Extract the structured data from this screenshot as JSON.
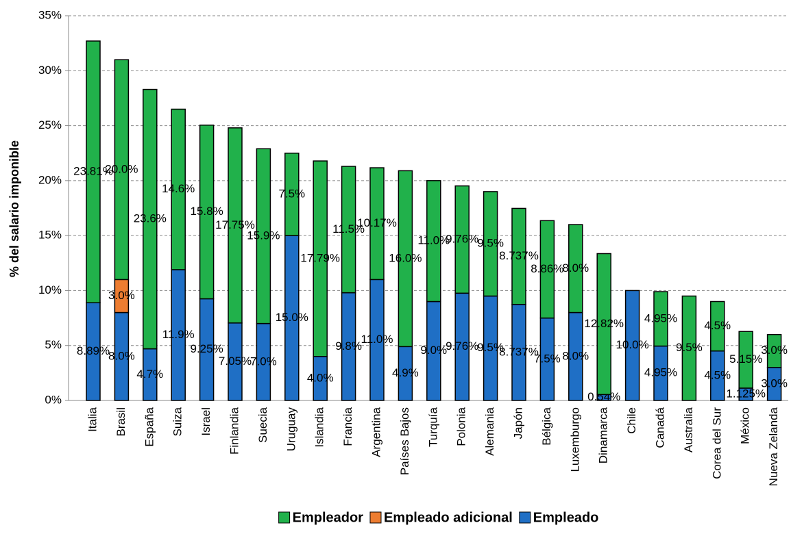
{
  "chart_data": {
    "type": "stacked-bar",
    "y_label": "% del salario imponible",
    "categories": [
      "Italia",
      "Brasil",
      "España",
      "Suiza",
      "Israel",
      "Finlandia",
      "Suecia",
      "Uruguay",
      "Islandia",
      "Francia",
      "Argentina",
      "Países Bajos",
      "Turquía",
      "Polonia",
      "Alemania",
      "Japón",
      "Bélgica",
      "Luxemburgo",
      "Dinamarca",
      "Chile",
      "Canadá",
      "Australia",
      "Corea del Sur",
      "México",
      "Nueva Zelanda"
    ],
    "series": [
      {
        "name": "Empleador",
        "color": "#21b14b",
        "values": [
          23.81,
          20.0,
          23.6,
          14.6,
          15.8,
          17.75,
          15.9,
          7.5,
          17.79,
          11.5,
          10.17,
          16.0,
          11.0,
          9.76,
          9.5,
          8.737,
          8.86,
          8.0,
          12.82,
          null,
          4.95,
          9.5,
          4.5,
          5.15,
          3.0
        ],
        "value_labels": [
          "23.81%",
          "20.0%",
          "23.6%",
          "14.6%",
          "15.8%",
          "17.75%",
          "15.9%",
          "7.5%",
          "17.79%",
          "11.5%",
          "10.17%",
          "16.0%",
          "11.0%",
          "9.76%",
          "9.5%",
          "8.737%",
          "8.86%",
          "8.0%",
          "12.82%",
          null,
          "4.95%",
          "9.5%",
          "4.5%",
          "5.15%",
          "3.0%"
        ]
      },
      {
        "name": "Empleado adicional",
        "color": "#ed7d31",
        "values": [
          null,
          3.0,
          null,
          null,
          null,
          null,
          null,
          null,
          null,
          null,
          null,
          null,
          null,
          null,
          null,
          null,
          null,
          null,
          null,
          null,
          null,
          null,
          null,
          null,
          null
        ],
        "value_labels": [
          null,
          "3.0%",
          null,
          null,
          null,
          null,
          null,
          null,
          null,
          null,
          null,
          null,
          null,
          null,
          null,
          null,
          null,
          null,
          null,
          null,
          null,
          null,
          null,
          null,
          null
        ]
      },
      {
        "name": "Empleado",
        "color": "#1f6fc5",
        "values": [
          8.89,
          8.0,
          4.7,
          11.9,
          9.25,
          7.05,
          7.0,
          15.0,
          4.0,
          9.8,
          11.0,
          4.9,
          9.0,
          9.76,
          9.5,
          8.737,
          7.5,
          8.0,
          0.54,
          10.0,
          4.95,
          null,
          4.5,
          1.125,
          3.0
        ],
        "value_labels": [
          "8.89%",
          "8.0%",
          "4.7%",
          "11.9%",
          "9.25%",
          "7.05%",
          "7.0%",
          "15.0%",
          "4.0%",
          "9.8%",
          "11.0%",
          "4.9%",
          "9.0%",
          "9.76%",
          "9.5%",
          "8.737%",
          "7.5%",
          "8.0%",
          "0.54%",
          "10.0%",
          "4.95%",
          null,
          "4.5%",
          "1.125%",
          "3.0%"
        ]
      }
    ],
    "ylim": [
      0,
      35
    ],
    "yticks": [
      {
        "value": 0,
        "label": "0%"
      },
      {
        "value": 5,
        "label": "5%"
      },
      {
        "value": 10,
        "label": "10%"
      },
      {
        "value": 15,
        "label": "15%"
      },
      {
        "value": 20,
        "label": "20%"
      },
      {
        "value": 25,
        "label": "25%"
      },
      {
        "value": 30,
        "label": "30%"
      },
      {
        "value": 35,
        "label": "35%"
      }
    ],
    "grid": true,
    "legend": "bottom"
  }
}
